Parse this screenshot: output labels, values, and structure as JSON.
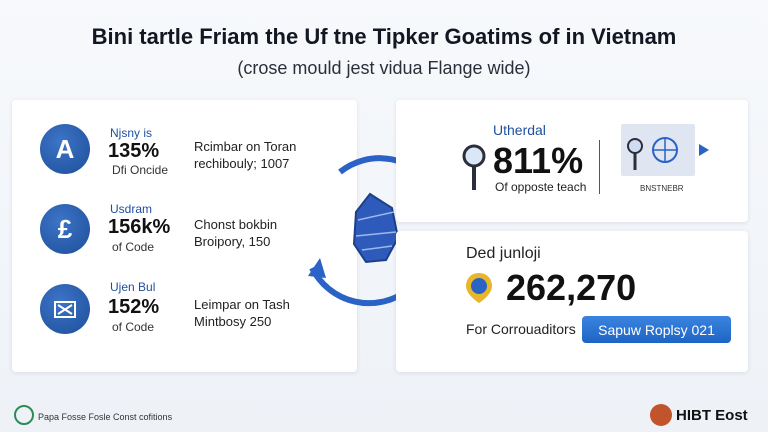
{
  "header": {
    "title": "Bini tartle Friam the Uf tne Tipker Goatims of in Vietnam",
    "subtitle": "(crose mould jest vidua Flange wide)"
  },
  "left_panel": {
    "rows": [
      {
        "icon": "a-letter-icon",
        "glyph": "A",
        "label": "Njsny is",
        "big": "135%",
        "small": "Dfi Oncide",
        "desc1": "Rcimbar on Toran",
        "desc2": "rechibouly; 1007"
      },
      {
        "icon": "pound-icon",
        "glyph": "£",
        "label": "Usdram",
        "big": "156k%",
        "small": "of Code",
        "desc1": "Chonst bokbin",
        "desc2": "Broipory, 150"
      },
      {
        "icon": "chart-box-icon",
        "glyph": "",
        "label": "Ujen Bul",
        "big": "152%",
        "small": "of Code",
        "desc1": "Leimpar on Tash",
        "desc2": "Mintbosy 250"
      }
    ]
  },
  "top_right": {
    "label": "Utherdal",
    "big": "811%",
    "sub": "Of opposte teach",
    "img_caption": "BNSTNEBR"
  },
  "bottom_right": {
    "label": "Ded junloji",
    "big": "262,270",
    "footer": "For Corrouaditors",
    "pill": "Sapuw Roplsy 021"
  },
  "footer": {
    "left": "Papa Fosse Fosle Const cofitions",
    "right": "HIBT Eost"
  },
  "colors": {
    "accent_blue": "#1f64c4",
    "circle_blue": "#1d4e99",
    "brand_orange": "#c2542b"
  }
}
